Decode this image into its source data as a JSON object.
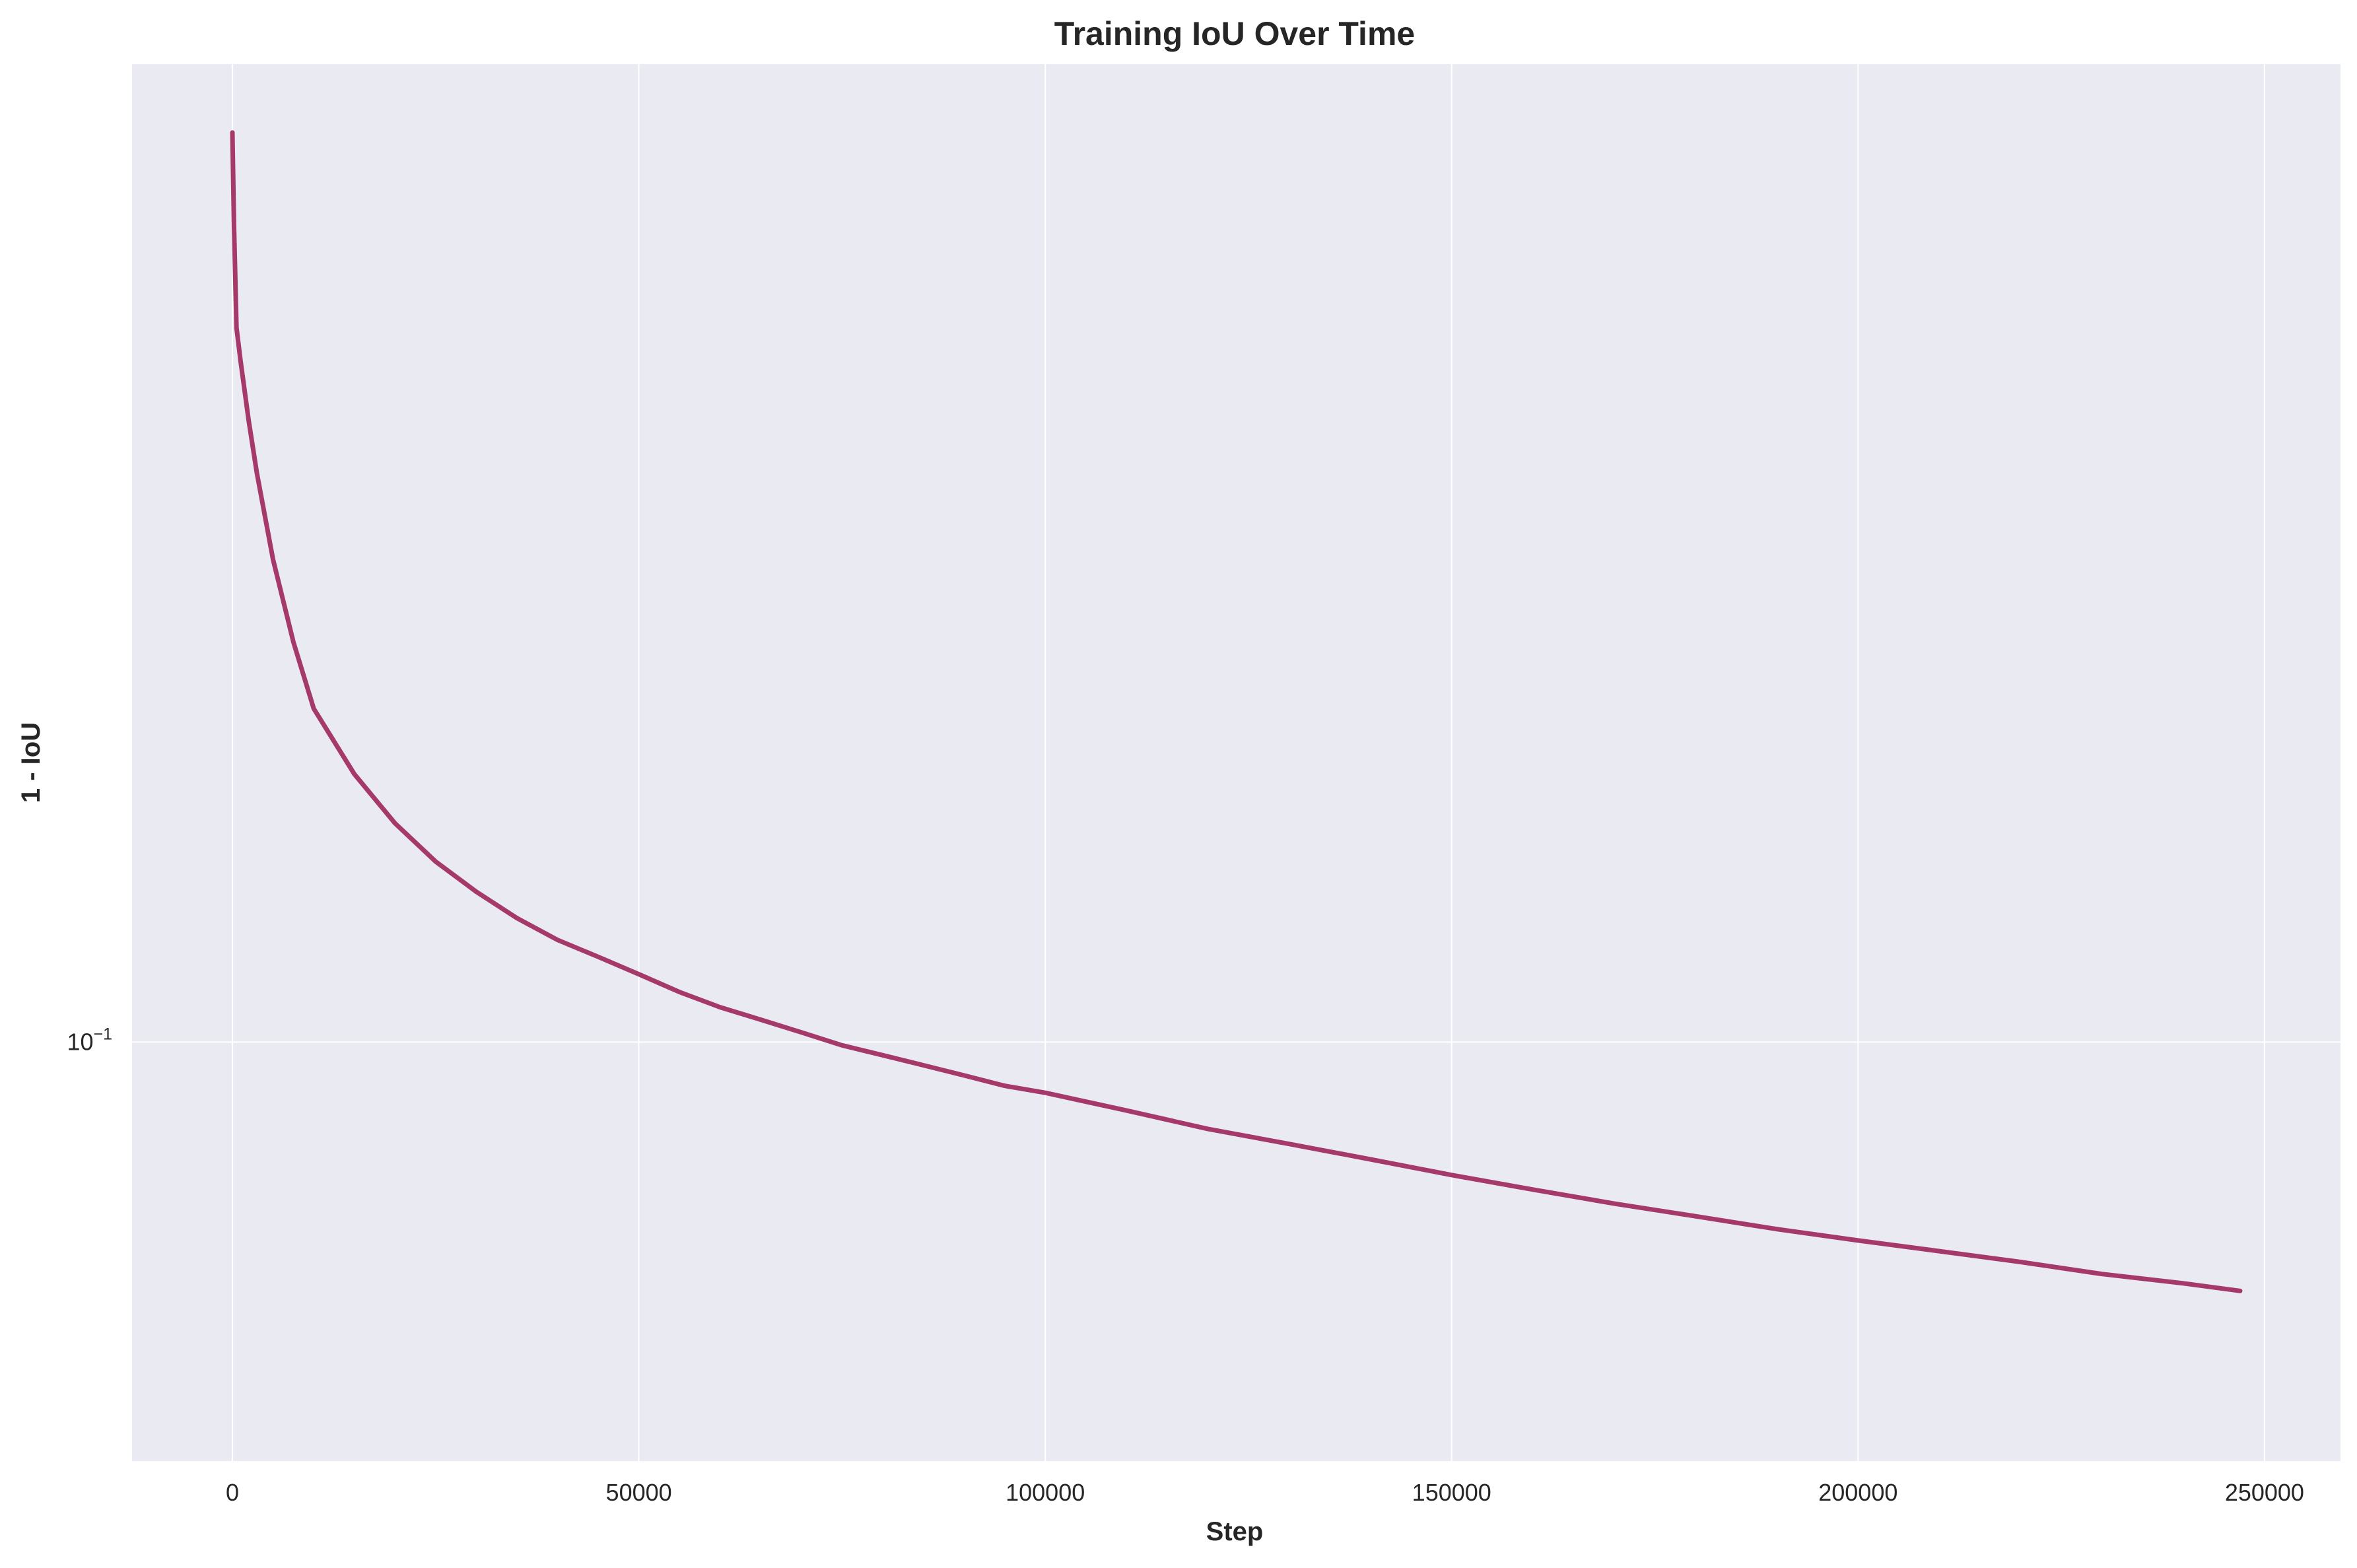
{
  "chart_data": {
    "type": "line",
    "title": "Training IoU Over Time",
    "xlabel": "Step",
    "ylabel": "1 - IoU",
    "xlim": [
      -12350,
      259350
    ],
    "ylim": [
      0.0525,
      0.45
    ],
    "yscale": "log",
    "grid": true,
    "x_ticks": [
      0,
      50000,
      100000,
      150000,
      200000,
      250000
    ],
    "x_tick_labels": [
      "0",
      "50000",
      "100000",
      "150000",
      "200000",
      "250000"
    ],
    "y_ticks": [
      0.1
    ],
    "y_tick_labels": [
      {
        "base": "10",
        "exp": "−1"
      }
    ],
    "series": [
      {
        "color": "#9e2a5e",
        "x": [
          0,
          200,
          500,
          1000,
          2000,
          3000,
          5000,
          7500,
          10000,
          15000,
          20000,
          25000,
          30000,
          35000,
          40000,
          45000,
          50000,
          55000,
          60000,
          65000,
          70000,
          75000,
          80000,
          85000,
          90000,
          95000,
          100000,
          110000,
          120000,
          130000,
          140000,
          150000,
          160000,
          170000,
          180000,
          190000,
          200000,
          210000,
          220000,
          230000,
          240000,
          247000
        ],
        "values": [
          0.405,
          0.35,
          0.3,
          0.285,
          0.26,
          0.24,
          0.21,
          0.185,
          0.167,
          0.151,
          0.14,
          0.132,
          0.126,
          0.121,
          0.117,
          0.114,
          0.111,
          0.108,
          0.1055,
          0.1035,
          0.1015,
          0.0995,
          0.098,
          0.0965,
          0.095,
          0.0935,
          0.0925,
          0.09,
          0.0875,
          0.0855,
          0.0835,
          0.0815,
          0.0797,
          0.078,
          0.0765,
          0.075,
          0.0737,
          0.0725,
          0.0713,
          0.07,
          0.069,
          0.0682
        ]
      }
    ]
  }
}
